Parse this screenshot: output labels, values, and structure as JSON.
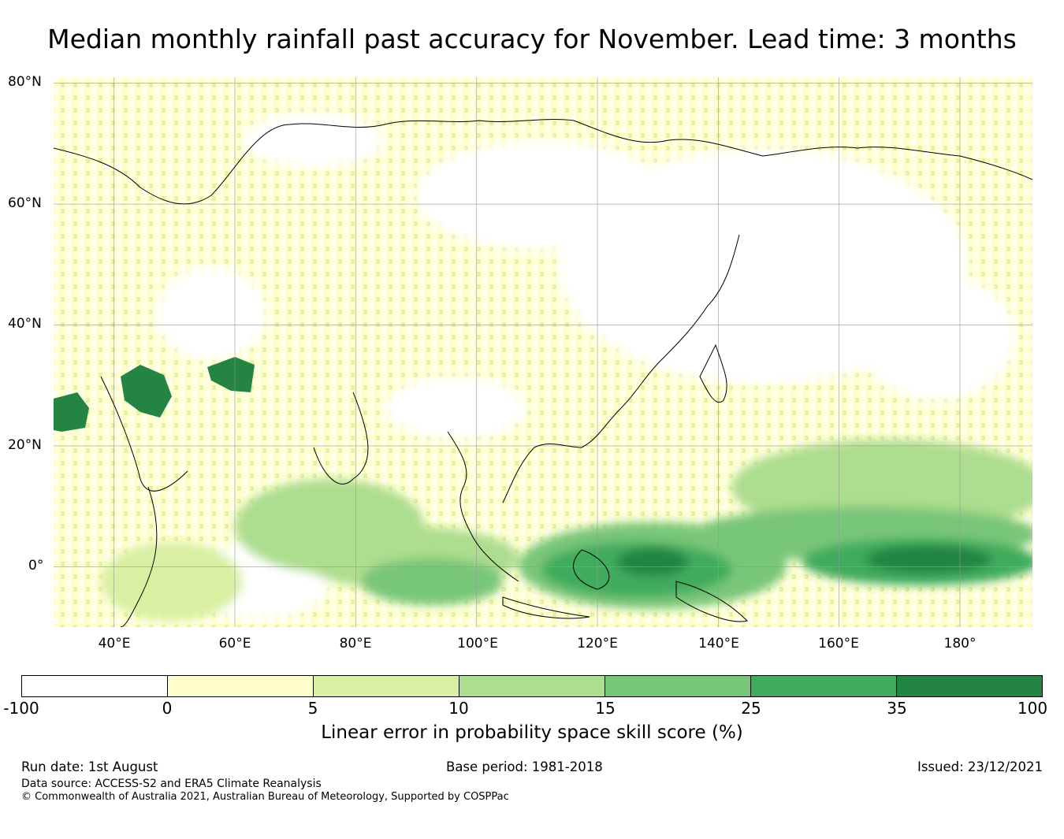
{
  "title": "Median monthly rainfall past accuracy for November. Lead time: 3 months",
  "map": {
    "lat_labels": [
      "80°N",
      "60°N",
      "40°N",
      "20°N",
      "0°"
    ],
    "lon_labels": [
      "40°E",
      "60°E",
      "80°E",
      "100°E",
      "120°E",
      "140°E",
      "160°E",
      "180°"
    ],
    "lat_values": [
      80,
      60,
      40,
      20,
      0
    ],
    "lon_values": [
      40,
      60,
      80,
      100,
      120,
      140,
      160,
      180
    ],
    "extent": {
      "lon_min": 30,
      "lon_max": 192,
      "lat_min": -10,
      "lat_max": 81
    }
  },
  "colorbar": {
    "ticks": [
      "-100",
      "0",
      "5",
      "10",
      "15",
      "25",
      "35",
      "100"
    ],
    "colors": [
      "#ffffff",
      "#ffffcc",
      "#d9f0a3",
      "#addd8e",
      "#78c679",
      "#41ab5d",
      "#238443"
    ],
    "title": "Linear error in probability space skill score (%)"
  },
  "footer": {
    "run_date": "Run date: 1st August",
    "base_period": "Base period: 1981-2018",
    "issued": "Issued: 23/12/2021",
    "data_source": "Data source: ACCESS-S2 and ERA5 Climate Reanalysis",
    "copyright": "© Commonwealth of Australia 2021, Australian Bureau of Meteorology, Supported by COSPPac"
  }
}
